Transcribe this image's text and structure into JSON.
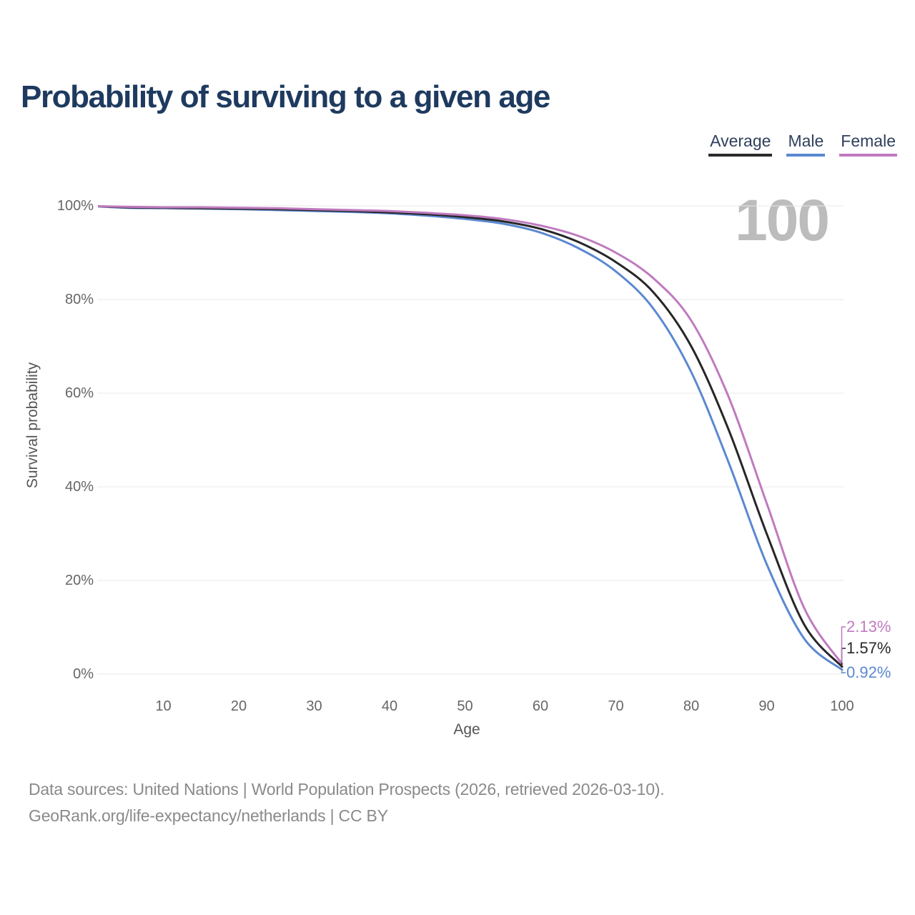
{
  "page": {
    "footer_line1": "Data sources: United Nations | World Population Prospects (2026, retrieved 2026-03-10).",
    "footer_line2": "GeoRank.org/life-expectancy/netherlands | CC BY"
  },
  "legend": {
    "items": [
      {
        "label": "Average",
        "color": "#2b2b2b"
      },
      {
        "label": "Male",
        "color": "#5b88d0"
      },
      {
        "label": "Female",
        "color": "#bf7abf"
      }
    ]
  },
  "chart_data": {
    "type": "line",
    "title": "Probability of surviving to a given age",
    "xlabel": "Age",
    "ylabel": "Survival probability",
    "xlim": [
      0,
      100
    ],
    "ylim": [
      0,
      100
    ],
    "grid": "horizontal-light",
    "legend_position": "top-right",
    "watermark": "100",
    "x_tick_labels": [
      "10",
      "20",
      "30",
      "40",
      "50",
      "60",
      "70",
      "80",
      "90",
      "100"
    ],
    "y_tick_labels": [
      "0%",
      "20%",
      "40%",
      "60%",
      "80%",
      "100%"
    ],
    "ages": [
      0,
      5,
      10,
      15,
      20,
      25,
      30,
      35,
      40,
      45,
      50,
      55,
      60,
      65,
      70,
      75,
      80,
      85,
      90,
      95,
      100
    ],
    "series": [
      {
        "name": "Average",
        "color": "#272727",
        "end_label": "1.57%",
        "values": [
          100,
          99.7,
          99.6,
          99.5,
          99.4,
          99.3,
          99.1,
          98.9,
          98.6,
          98.2,
          97.6,
          96.7,
          95.1,
          92.3,
          88.0,
          81.5,
          70.0,
          52.0,
          30.0,
          10.5,
          1.57
        ]
      },
      {
        "name": "Male",
        "color": "#5b88d0",
        "end_label": "0.92%",
        "values": [
          100,
          99.6,
          99.5,
          99.4,
          99.3,
          99.1,
          98.9,
          98.7,
          98.4,
          97.9,
          97.2,
          96.2,
          94.3,
          91.0,
          86.0,
          78.0,
          64.5,
          45.0,
          23.5,
          7.5,
          0.92
        ]
      },
      {
        "name": "Female",
        "color": "#bf7abf",
        "end_label": "2.13%",
        "values": [
          100,
          99.8,
          99.7,
          99.7,
          99.6,
          99.5,
          99.3,
          99.1,
          98.9,
          98.5,
          98.0,
          97.2,
          95.8,
          93.6,
          90.0,
          84.5,
          75.5,
          59.0,
          36.5,
          14.0,
          2.13
        ]
      }
    ]
  }
}
